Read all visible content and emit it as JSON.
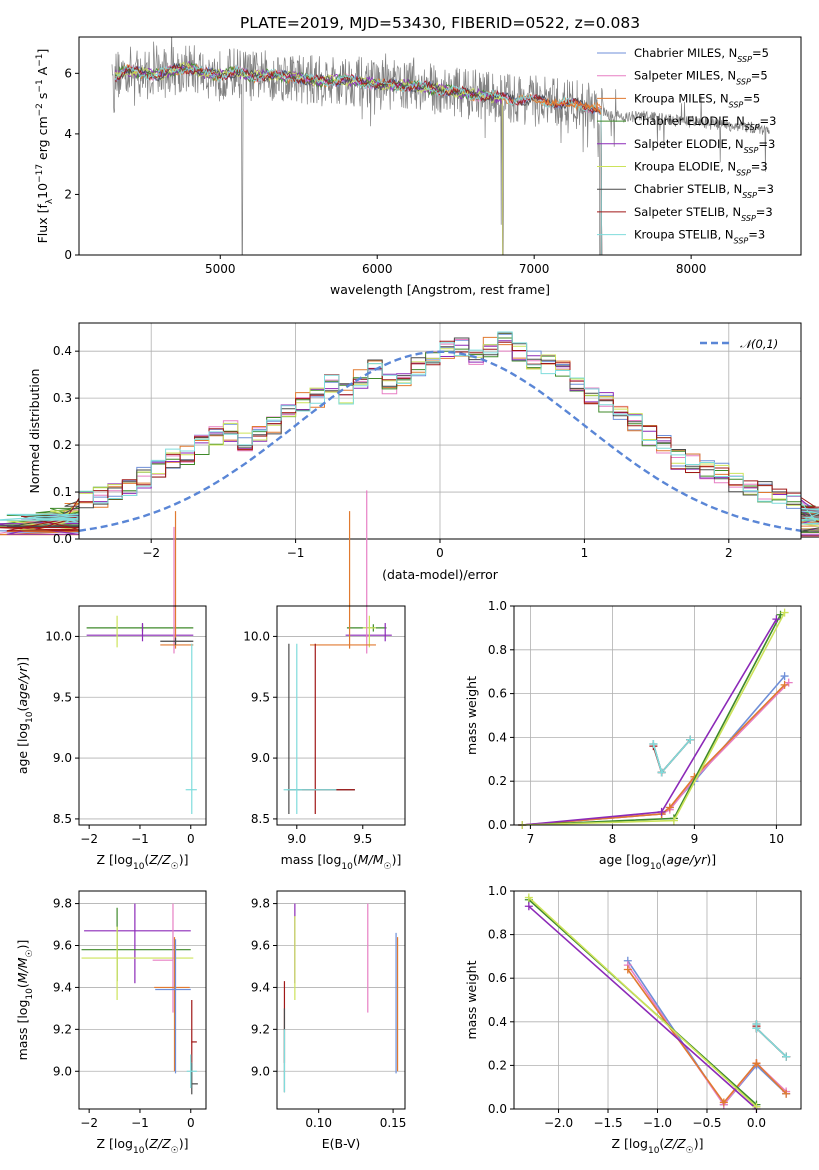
{
  "title": "PLATE=2019, MJD=53430, FIBERID=0522, z=0.083",
  "colors": {
    "Chabrier MILES": "#6f8fd8",
    "Salpeter MILES": "#e77fc4",
    "Kroupa MILES": "#e07a30",
    "Chabrier ELODIE": "#3f8a2a",
    "Salpeter ELODIE": "#8c2ab8",
    "Kroupa ELODIE": "#cce35a",
    "Chabrier STELIB": "#4a4a4a",
    "Salpeter STELIB": "#a01818",
    "Kroupa STELIB": "#7fdcdc",
    "data": "#808080",
    "normal": "#5a86d6"
  },
  "legend": [
    {
      "name": "Chabrier MILES",
      "sub": "SSP",
      "n": "=5"
    },
    {
      "name": "Salpeter MILES",
      "sub": "SSP",
      "n": "=5"
    },
    {
      "name": "Kroupa MILES",
      "sub": "SSP",
      "n": "=5"
    },
    {
      "name": "Chabrier ELODIE",
      "sub": "SSP",
      "n": "=3"
    },
    {
      "name": "Salpeter ELODIE",
      "sub": "SSP",
      "n": "=3"
    },
    {
      "name": "Kroupa ELODIE",
      "sub": "SSP",
      "n": "=3"
    },
    {
      "name": "Chabrier STELIB",
      "sub": "SSP",
      "n": "=3"
    },
    {
      "name": "Salpeter STELIB",
      "sub": "SSP",
      "n": "=3"
    },
    {
      "name": "Kroupa STELIB",
      "sub": "SSP",
      "n": "=3"
    }
  ],
  "chart_data": [
    {
      "id": "spectrum",
      "type": "line",
      "xlabel": "wavelength [Angstrom, rest frame]",
      "ylabel": "Flux [f_λ 10^-17 erg cm^-2 s^-1 A^-1]",
      "xlim": [
        4100,
        8700
      ],
      "ylim": [
        0,
        7.2
      ],
      "xticks": [
        5000,
        6000,
        7000,
        8000
      ],
      "yticks": [
        0,
        2,
        4,
        6
      ],
      "grid": false,
      "legend_position": "top-right",
      "model_x": [
        4330,
        4400,
        4500,
        4600,
        4700,
        4800,
        4900,
        5000,
        5100,
        5200,
        5300,
        5400,
        5500,
        5600,
        5700,
        5800,
        5900,
        6000,
        6100,
        6200,
        6300,
        6400,
        6500,
        6600,
        6700,
        6800,
        6900,
        7000,
        7100,
        7200,
        7300,
        7400,
        7430,
        7500,
        7600,
        7700,
        7800,
        7900,
        8000,
        8100,
        8200,
        8300,
        8400,
        8500
      ],
      "model_y": [
        5.9,
        6.1,
        6.0,
        5.95,
        6.1,
        6.2,
        6.0,
        5.95,
        6.05,
        5.9,
        5.95,
        5.9,
        5.85,
        5.75,
        5.75,
        5.8,
        5.7,
        5.65,
        5.6,
        5.6,
        5.55,
        5.45,
        5.4,
        5.3,
        5.25,
        5.2,
        5.15,
        5.1,
        5.05,
        5.0,
        4.95,
        4.85,
        4.7,
        4.6,
        4.55,
        4.6,
        4.5,
        4.45,
        4.4,
        4.35,
        4.3,
        4.25,
        4.2,
        4.1
      ],
      "data_range": [
        4310,
        8500
      ]
    },
    {
      "id": "residuals",
      "type": "step-histogram",
      "xlabel": "(data-model)/error",
      "ylabel": "Normed distribution",
      "xlim": [
        -2.5,
        2.5
      ],
      "ylim": [
        0,
        0.46
      ],
      "xticks": [
        -2,
        -1,
        0,
        1,
        2
      ],
      "yticks": [
        0,
        0.1,
        0.2,
        0.3,
        0.4
      ],
      "grid": true,
      "bin_width": 0.1,
      "legend_label": "𝒩(0,1)",
      "base_values": [
        0.025,
        0.03,
        0.035,
        0.04,
        0.045,
        0.055,
        0.065,
        0.08,
        0.09,
        0.1,
        0.115,
        0.13,
        0.15,
        0.17,
        0.18,
        0.2,
        0.22,
        0.23,
        0.21,
        0.23,
        0.245,
        0.27,
        0.29,
        0.3,
        0.33,
        0.31,
        0.34,
        0.36,
        0.33,
        0.34,
        0.37,
        0.39,
        0.4,
        0.41,
        0.38,
        0.41,
        0.42,
        0.4,
        0.38,
        0.37,
        0.36,
        0.33,
        0.3,
        0.29,
        0.27,
        0.25,
        0.22,
        0.2,
        0.17,
        0.16,
        0.15,
        0.14,
        0.12,
        0.11,
        0.1,
        0.095,
        0.085,
        0.07,
        0.06,
        0.05,
        0.04,
        0.035,
        0.03,
        0.025
      ]
    },
    {
      "id": "age_vs_Z",
      "type": "errorbar",
      "xlabel": "Z [log10(Z/Z☉)]",
      "ylabel": "age [log10(age/yr)]",
      "xlim": [
        -2.2,
        0.3
      ],
      "ylim": [
        8.45,
        10.25
      ],
      "xticks": [
        -2,
        -1,
        0
      ],
      "yticks": [
        8.5,
        9.0,
        9.5,
        10.0
      ],
      "points": [
        {
          "m": "Chabrier ELODIE",
          "x": -0.95,
          "y": 10.07,
          "xe": [
            1.1,
            1.0
          ],
          "ye": [
            0.03,
            0.03
          ]
        },
        {
          "m": "Salpeter ELODIE",
          "x": -0.95,
          "y": 10.01,
          "xe": [
            1.1,
            1.0
          ],
          "ye": [
            0.05,
            0.1
          ]
        },
        {
          "m": "Kroupa ELODIE",
          "x": -1.45,
          "y": 10.07,
          "xe": [
            0.01,
            0.01
          ],
          "ye": [
            0.16,
            0.1
          ]
        },
        {
          "m": "Salpeter MILES",
          "x": -0.33,
          "y": 10.0,
          "xe": [
            0.01,
            0.01
          ],
          "ye": [
            0.14,
            0.9
          ]
        },
        {
          "m": "Kroupa MILES",
          "x": -0.3,
          "y": 9.93,
          "xe": [
            0.3,
            0.35
          ],
          "ye": [
            0.03,
            1.1
          ]
        },
        {
          "m": "Chabrier STELIB",
          "x": -0.3,
          "y": 9.96,
          "xe": [
            0.3,
            0.35
          ],
          "ye": [
            0.03,
            0.03
          ]
        },
        {
          "m": "Kroupa STELIB",
          "x": 0.02,
          "y": 8.74,
          "xe": [
            0.12,
            0.1
          ],
          "ye": [
            0.2,
            1.2
          ]
        }
      ]
    },
    {
      "id": "age_vs_mass",
      "type": "errorbar",
      "xlabel": "mass [log10(M/M☉)]",
      "ylabel": "",
      "xlim": [
        8.85,
        9.82
      ],
      "ylim": [
        8.45,
        10.25
      ],
      "xticks": [
        9.0,
        9.5
      ],
      "yticks": [
        8.5,
        9.0,
        9.5,
        10.0
      ],
      "points": [
        {
          "m": "Chabrier ELODIE",
          "x": 9.58,
          "y": 10.07,
          "xe": [
            0.2,
            0.1
          ],
          "ye": [
            0.03,
            0.03
          ]
        },
        {
          "m": "Salpeter ELODIE",
          "x": 9.67,
          "y": 10.01,
          "xe": [
            0.3,
            0.05
          ],
          "ye": [
            0.05,
            0.1
          ]
        },
        {
          "m": "Kroupa ELODIE",
          "x": 9.55,
          "y": 10.07,
          "xe": [
            0.05,
            0.05
          ],
          "ye": [
            0.16,
            0.1
          ]
        },
        {
          "m": "Salpeter MILES",
          "x": 9.53,
          "y": 10.0,
          "xe": [
            0.01,
            0.01
          ],
          "ye": [
            0.14,
            1.2
          ]
        },
        {
          "m": "Kroupa MILES",
          "x": 9.4,
          "y": 9.93,
          "xe": [
            0.3,
            0.2
          ],
          "ye": [
            0.03,
            1.1
          ]
        },
        {
          "m": "Chabrier STELIB",
          "x": 8.94,
          "y": 8.74,
          "xe": [
            0.01,
            0.5
          ],
          "ye": [
            0.2,
            1.2
          ]
        },
        {
          "m": "Salpeter STELIB",
          "x": 9.14,
          "y": 8.74,
          "xe": [
            0.1,
            0.3
          ],
          "ye": [
            0.2,
            1.2
          ]
        },
        {
          "m": "Kroupa STELIB",
          "x": 9.0,
          "y": 8.74,
          "xe": [
            0.1,
            0.3
          ],
          "ye": [
            0.2,
            1.2
          ]
        }
      ]
    },
    {
      "id": "weight_vs_age",
      "type": "line",
      "xlabel": "age [log10(age/yr)]",
      "ylabel": "mass weight",
      "xlim": [
        6.8,
        10.3
      ],
      "ylim": [
        0,
        1.0
      ],
      "xticks": [
        7,
        8,
        9,
        10
      ],
      "yticks": [
        0,
        0.2,
        0.4,
        0.6,
        0.8,
        1.0
      ],
      "grid": true,
      "series": [
        {
          "m": "Chabrier MILES",
          "x": [
            6.9,
            8.6,
            8.7,
            9.0,
            10.1
          ],
          "y": [
            0.0,
            0.05,
            0.08,
            0.2,
            0.68
          ]
        },
        {
          "m": "Salpeter MILES",
          "x": [
            6.9,
            8.6,
            8.7,
            9.0,
            10.15
          ],
          "y": [
            0.0,
            0.05,
            0.07,
            0.21,
            0.65
          ]
        },
        {
          "m": "Kroupa MILES",
          "x": [
            6.9,
            8.6,
            8.7,
            9.0,
            10.1
          ],
          "y": [
            0.0,
            0.05,
            0.08,
            0.22,
            0.64
          ]
        },
        {
          "m": "Chabrier ELODIE",
          "x": [
            6.9,
            8.75,
            10.05
          ],
          "y": [
            0.0,
            0.03,
            0.96
          ]
        },
        {
          "m": "Salpeter ELODIE",
          "x": [
            6.9,
            8.6,
            10.0
          ],
          "y": [
            0.0,
            0.06,
            0.94
          ]
        },
        {
          "m": "Kroupa ELODIE",
          "x": [
            6.9,
            8.75,
            10.1
          ],
          "y": [
            0.0,
            0.02,
            0.97
          ]
        },
        {
          "m": "Chabrier STELIB",
          "x": [
            8.5,
            8.6,
            8.95
          ],
          "y": [
            0.37,
            0.24,
            0.39
          ]
        },
        {
          "m": "Salpeter STELIB",
          "x": [
            8.5,
            8.6,
            8.95
          ],
          "y": [
            0.36,
            0.24,
            0.39
          ]
        },
        {
          "m": "Kroupa STELIB",
          "x": [
            8.5,
            8.6,
            8.95
          ],
          "y": [
            0.37,
            0.24,
            0.39
          ]
        }
      ]
    },
    {
      "id": "mass_vs_Z",
      "type": "errorbar",
      "xlabel": "Z [log10(Z/Z☉)]",
      "ylabel": "mass [log10(M/M☉)]",
      "xlim": [
        -2.2,
        0.3
      ],
      "ylim": [
        8.82,
        9.86
      ],
      "xticks": [
        -2,
        -1,
        0
      ],
      "yticks": [
        9.0,
        9.2,
        9.4,
        9.6,
        9.8
      ],
      "points": [
        {
          "m": "Salpeter ELODIE",
          "x": -1.1,
          "y": 9.67,
          "xe": [
            1.0,
            1.1
          ],
          "ye": [
            0.25,
            0.13
          ]
        },
        {
          "m": "Chabrier ELODIE",
          "x": -1.45,
          "y": 9.58,
          "xe": [
            0.7,
            1.45
          ],
          "ye": [
            0.15,
            0.2
          ]
        },
        {
          "m": "Kroupa ELODIE",
          "x": -1.45,
          "y": 9.54,
          "xe": [
            0.7,
            1.5
          ],
          "ye": [
            0.2,
            0.15
          ]
        },
        {
          "m": "Salpeter MILES",
          "x": -0.35,
          "y": 9.53,
          "xe": [
            0.4,
            0.01
          ],
          "ye": [
            0.25,
            0.27
          ]
        },
        {
          "m": "Kroupa MILES",
          "x": -0.32,
          "y": 9.4,
          "xe": [
            0.4,
            0.3
          ],
          "ye": [
            0.4,
            0.24
          ]
        },
        {
          "m": "Chabrier MILES",
          "x": -0.3,
          "y": 9.39,
          "xe": [
            0.4,
            0.3
          ],
          "ye": [
            0.4,
            0.24
          ]
        },
        {
          "m": "Salpeter STELIB",
          "x": 0.02,
          "y": 9.14,
          "xe": [
            0.01,
            0.1
          ],
          "ye": [
            0.1,
            0.2
          ]
        },
        {
          "m": "Chabrier STELIB",
          "x": 0.02,
          "y": 8.94,
          "xe": [
            0.01,
            0.12
          ],
          "ye": [
            0.05,
            0.1
          ]
        },
        {
          "m": "Kroupa STELIB",
          "x": 0.0,
          "y": 9.0,
          "xe": [
            0.08,
            0.12
          ],
          "ye": [
            0.08,
            0.08
          ]
        }
      ]
    },
    {
      "id": "mass_vs_EBV",
      "type": "errorbar",
      "xlabel": "E(B-V)",
      "ylabel": "",
      "xlim": [
        0.072,
        0.158
      ],
      "ylim": [
        8.82,
        9.86
      ],
      "xticks": [
        0.1,
        0.15
      ],
      "yticks": [
        9.0,
        9.2,
        9.4,
        9.6,
        9.8
      ],
      "points": [
        {
          "m": "Salpeter ELODIE",
          "x": 0.084,
          "y": 9.67,
          "xe": [
            0,
            0
          ],
          "ye": [
            0.25,
            0.13
          ]
        },
        {
          "m": "Kroupa ELODIE",
          "x": 0.084,
          "y": 9.54,
          "xe": [
            0,
            0
          ],
          "ye": [
            0.2,
            0.2
          ]
        },
        {
          "m": "Salpeter MILES",
          "x": 0.133,
          "y": 9.53,
          "xe": [
            0,
            0
          ],
          "ye": [
            0.25,
            0.27
          ]
        },
        {
          "m": "Kroupa MILES",
          "x": 0.153,
          "y": 9.4,
          "xe": [
            0,
            0
          ],
          "ye": [
            0.4,
            0.24
          ]
        },
        {
          "m": "Chabrier MILES",
          "x": 0.152,
          "y": 9.39,
          "xe": [
            0,
            0
          ],
          "ye": [
            0.4,
            0.27
          ]
        },
        {
          "m": "Salpeter STELIB",
          "x": 0.077,
          "y": 9.14,
          "xe": [
            0,
            0
          ],
          "ye": [
            0.1,
            0.29
          ]
        },
        {
          "m": "Chabrier STELIB",
          "x": 0.077,
          "y": 9.1,
          "xe": [
            0,
            0
          ],
          "ye": [
            0.2,
            0.2
          ]
        },
        {
          "m": "Kroupa STELIB",
          "x": 0.077,
          "y": 9.05,
          "xe": [
            0,
            0
          ],
          "ye": [
            0.15,
            0.15
          ]
        }
      ]
    },
    {
      "id": "weight_vs_Z",
      "type": "line",
      "xlabel": "Z [log10(Z/Z☉)]",
      "ylabel": "mass weight",
      "xlim": [
        -2.45,
        0.45
      ],
      "ylim": [
        0,
        1.0
      ],
      "xticks": [
        -2.0,
        -1.5,
        -1.0,
        -0.5,
        0.0
      ],
      "xtick_labels": [
        "−2.0",
        "−1.5",
        "−1.0",
        "−0.5",
        "0.0"
      ],
      "yticks": [
        0,
        0.2,
        0.4,
        0.6,
        0.8,
        1.0
      ],
      "grid": true,
      "series": [
        {
          "m": "Chabrier MILES",
          "x": [
            -1.3,
            -0.33,
            0.0,
            0.0,
            0.3
          ],
          "y": [
            0.68,
            0.02,
            0.2,
            0.2,
            0.07
          ]
        },
        {
          "m": "Salpeter MILES",
          "x": [
            -1.3,
            -0.33,
            0.0,
            0.0,
            0.3
          ],
          "y": [
            0.66,
            0.02,
            0.21,
            0.21,
            0.08
          ]
        },
        {
          "m": "Kroupa MILES",
          "x": [
            -1.3,
            -0.33,
            0.0,
            0.0,
            0.3
          ],
          "y": [
            0.64,
            0.03,
            0.21,
            0.21,
            0.07
          ]
        },
        {
          "m": "Chabrier ELODIE",
          "x": [
            -2.3,
            0.0
          ],
          "y": [
            0.96,
            0.02
          ]
        },
        {
          "m": "Salpeter ELODIE",
          "x": [
            -2.3,
            0.0
          ],
          "y": [
            0.93,
            0.0
          ]
        },
        {
          "m": "Kroupa ELODIE",
          "x": [
            -2.3,
            0.0
          ],
          "y": [
            0.97,
            0.01
          ]
        },
        {
          "m": "Chabrier STELIB",
          "x": [
            0.0,
            0.0,
            0.3
          ],
          "y": [
            0.39,
            0.37,
            0.24
          ]
        },
        {
          "m": "Salpeter STELIB",
          "x": [
            0.0,
            0.0,
            0.3
          ],
          "y": [
            0.38,
            0.37,
            0.24
          ]
        },
        {
          "m": "Kroupa STELIB",
          "x": [
            0.0,
            0.0,
            0.3
          ],
          "y": [
            0.39,
            0.37,
            0.24
          ]
        }
      ]
    }
  ]
}
